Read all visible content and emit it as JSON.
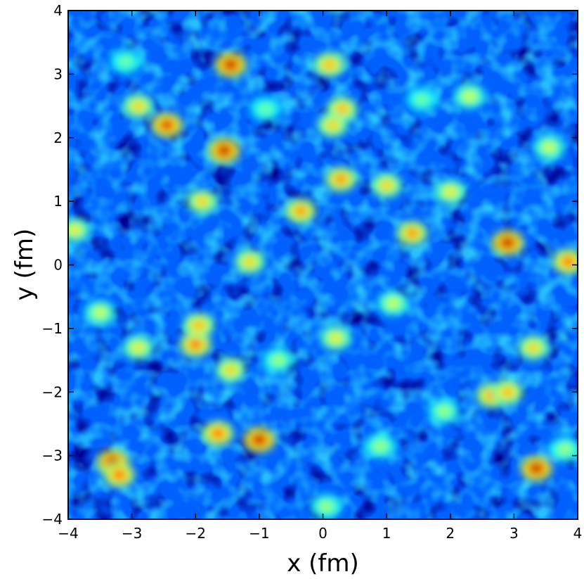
{
  "chart_data": {
    "type": "heatmap",
    "title": "",
    "xlabel": "x (fm)",
    "ylabel": "y (fm)",
    "xlim": [
      -4,
      4
    ],
    "ylim": [
      -4,
      4
    ],
    "x_ticks": [
      -4,
      -3,
      -2,
      -1,
      0,
      1,
      2,
      3,
      4
    ],
    "y_ticks": [
      -4,
      -3,
      -2,
      -1,
      0,
      1,
      2,
      3,
      4
    ],
    "x_tick_labels": [
      "−4",
      "−3",
      "−2",
      "−1",
      "0",
      "1",
      "2",
      "3",
      "4"
    ],
    "y_tick_labels": [
      "−4",
      "−3",
      "−2",
      "−1",
      "0",
      "1",
      "2",
      "3",
      "4"
    ],
    "colormap": "jet",
    "colorbar": false,
    "grid": false,
    "background_level": 0.22,
    "hotspots": [
      {
        "x": -1.45,
        "y": 3.15,
        "v": 1.0
      },
      {
        "x": -1.55,
        "y": 1.8,
        "v": 1.0
      },
      {
        "x": -2.45,
        "y": 2.2,
        "v": 0.95
      },
      {
        "x": 0.1,
        "y": 3.15,
        "v": 0.75
      },
      {
        "x": 0.3,
        "y": 2.45,
        "v": 0.75
      },
      {
        "x": 0.15,
        "y": 2.2,
        "v": 0.7
      },
      {
        "x": 0.28,
        "y": 1.35,
        "v": 0.8
      },
      {
        "x": -0.35,
        "y": 0.85,
        "v": 0.8
      },
      {
        "x": 1.0,
        "y": 1.25,
        "v": 0.7
      },
      {
        "x": 1.4,
        "y": 0.5,
        "v": 0.8
      },
      {
        "x": 2.9,
        "y": 0.35,
        "v": 1.0
      },
      {
        "x": 3.85,
        "y": 0.05,
        "v": 0.85
      },
      {
        "x": -1.15,
        "y": 0.05,
        "v": 0.7
      },
      {
        "x": -1.9,
        "y": 1.0,
        "v": 0.7
      },
      {
        "x": -2.9,
        "y": 2.5,
        "v": 0.7
      },
      {
        "x": -3.9,
        "y": 0.55,
        "v": 0.65
      },
      {
        "x": -2.0,
        "y": -1.25,
        "v": 0.85
      },
      {
        "x": -1.95,
        "y": -0.95,
        "v": 0.75
      },
      {
        "x": -1.0,
        "y": -2.75,
        "v": 1.0
      },
      {
        "x": -1.65,
        "y": -2.65,
        "v": 0.85
      },
      {
        "x": -3.3,
        "y": -3.1,
        "v": 1.0
      },
      {
        "x": -3.2,
        "y": -3.3,
        "v": 0.85
      },
      {
        "x": 3.35,
        "y": -3.2,
        "v": 1.0
      },
      {
        "x": 2.65,
        "y": -2.05,
        "v": 0.8
      },
      {
        "x": 2.9,
        "y": -2.0,
        "v": 0.75
      },
      {
        "x": 2.0,
        "y": 1.15,
        "v": 0.65
      },
      {
        "x": -1.45,
        "y": -1.65,
        "v": 0.7
      },
      {
        "x": 0.2,
        "y": -1.15,
        "v": 0.65
      },
      {
        "x": 3.3,
        "y": -1.3,
        "v": 0.7
      },
      {
        "x": 2.3,
        "y": 2.65,
        "v": 0.6
      },
      {
        "x": 3.55,
        "y": 1.85,
        "v": 0.6
      },
      {
        "x": -2.9,
        "y": -1.3,
        "v": 0.65
      },
      {
        "x": -3.5,
        "y": -0.75,
        "v": 0.6
      },
      {
        "x": 1.1,
        "y": -0.6,
        "v": 0.6
      },
      {
        "x": 0.9,
        "y": -2.85,
        "v": 0.55
      },
      {
        "x": 0.05,
        "y": -3.8,
        "v": 0.55
      },
      {
        "x": 3.8,
        "y": -2.9,
        "v": 0.55
      },
      {
        "x": -0.7,
        "y": -1.5,
        "v": 0.55
      },
      {
        "x": 1.9,
        "y": -2.3,
        "v": 0.55
      },
      {
        "x": 1.55,
        "y": 2.6,
        "v": 0.5
      },
      {
        "x": -0.9,
        "y": 2.45,
        "v": 0.5
      },
      {
        "x": -3.1,
        "y": 3.2,
        "v": 0.5
      }
    ]
  }
}
